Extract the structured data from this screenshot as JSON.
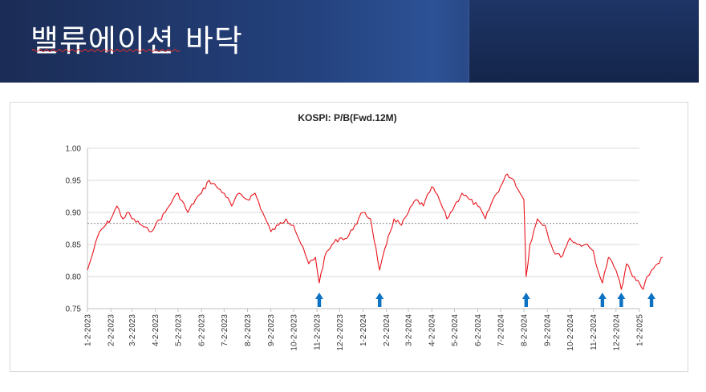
{
  "header": {
    "title": "밸류에이션 바닥"
  },
  "colors": {
    "line": "#e8141b",
    "arrow": "#0d72c4",
    "average": "#8c8c8c",
    "grid": "#d9d9d9"
  },
  "chart_data": {
    "type": "line",
    "title": "KOSPI: P/B(Fwd.12M)",
    "ylim": [
      0.75,
      1.0
    ],
    "yticks": [
      "1.00",
      "0.95",
      "0.90",
      "0.85",
      "0.80",
      "0.75"
    ],
    "xtick_labels": [
      "1-2-2023",
      "2-2-2023",
      "3-2-2023",
      "4-2-2023",
      "5-2-2023",
      "6-2-2023",
      "7-2-2023",
      "8-2-2023",
      "9-2-2023",
      "10-2-2023",
      "11-2-2023",
      "12-2-2023",
      "1-2-2024",
      "2-2-2024",
      "3-2-2024",
      "4-2-2024",
      "5-2-2024",
      "6-2-2024",
      "7-2-2024",
      "8-2-2024",
      "9-2-2024",
      "10-2-2024",
      "11-2-2024",
      "12-2-2024",
      "1-2-2025"
    ],
    "grid": true,
    "legend": "none",
    "average_line": 0.883,
    "series": [
      {
        "x": [
          "2023-01-02",
          "2023-01-10",
          "2023-01-18",
          "2023-01-26",
          "2023-02-02",
          "2023-02-10",
          "2023-02-18",
          "2023-02-26",
          "2023-03-02",
          "2023-03-15",
          "2023-03-25",
          "2023-04-02",
          "2023-04-15",
          "2023-04-25",
          "2023-05-02",
          "2023-05-15",
          "2023-05-25",
          "2023-06-02",
          "2023-06-12",
          "2023-06-22",
          "2023-07-02",
          "2023-07-12",
          "2023-07-22",
          "2023-08-02",
          "2023-08-12",
          "2023-08-22",
          "2023-09-02",
          "2023-09-12",
          "2023-09-22",
          "2023-10-02",
          "2023-10-12",
          "2023-10-22",
          "2023-10-31",
          "2023-11-05",
          "2023-11-12",
          "2023-11-22",
          "2023-12-02",
          "2023-12-12",
          "2023-12-22",
          "2024-01-02",
          "2024-01-12",
          "2024-01-24",
          "2024-02-02",
          "2024-02-12",
          "2024-02-22",
          "2024-03-02",
          "2024-03-12",
          "2024-03-22",
          "2024-04-02",
          "2024-04-12",
          "2024-04-22",
          "2024-05-02",
          "2024-05-12",
          "2024-05-22",
          "2024-06-02",
          "2024-06-12",
          "2024-06-22",
          "2024-07-02",
          "2024-07-11",
          "2024-07-20",
          "2024-07-28",
          "2024-08-02",
          "2024-08-05",
          "2024-08-10",
          "2024-08-20",
          "2024-08-30",
          "2024-09-10",
          "2024-09-20",
          "2024-10-02",
          "2024-10-12",
          "2024-10-22",
          "2024-11-02",
          "2024-11-08",
          "2024-11-14",
          "2024-11-22",
          "2024-12-02",
          "2024-12-09",
          "2024-12-16",
          "2024-12-24",
          "2025-01-02",
          "2025-01-07",
          "2025-01-12",
          "2025-01-18",
          "2025-01-26",
          "2025-02-02"
        ],
        "values": [
          0.81,
          0.84,
          0.87,
          0.88,
          0.89,
          0.91,
          0.89,
          0.9,
          0.89,
          0.88,
          0.87,
          0.88,
          0.9,
          0.92,
          0.93,
          0.9,
          0.92,
          0.93,
          0.95,
          0.94,
          0.93,
          0.91,
          0.93,
          0.92,
          0.93,
          0.9,
          0.87,
          0.88,
          0.89,
          0.88,
          0.85,
          0.82,
          0.83,
          0.79,
          0.83,
          0.85,
          0.86,
          0.86,
          0.88,
          0.9,
          0.89,
          0.81,
          0.85,
          0.89,
          0.88,
          0.9,
          0.92,
          0.91,
          0.94,
          0.92,
          0.89,
          0.91,
          0.93,
          0.92,
          0.91,
          0.89,
          0.92,
          0.94,
          0.96,
          0.95,
          0.93,
          0.92,
          0.8,
          0.85,
          0.89,
          0.88,
          0.84,
          0.83,
          0.86,
          0.85,
          0.85,
          0.84,
          0.81,
          0.79,
          0.83,
          0.81,
          0.78,
          0.82,
          0.8,
          0.79,
          0.78,
          0.8,
          0.81,
          0.82,
          0.83
        ]
      }
    ],
    "arrows_at": [
      "2023-11-05",
      "2024-01-24",
      "2024-08-05",
      "2024-11-14",
      "2024-12-09",
      "2025-01-18"
    ]
  }
}
